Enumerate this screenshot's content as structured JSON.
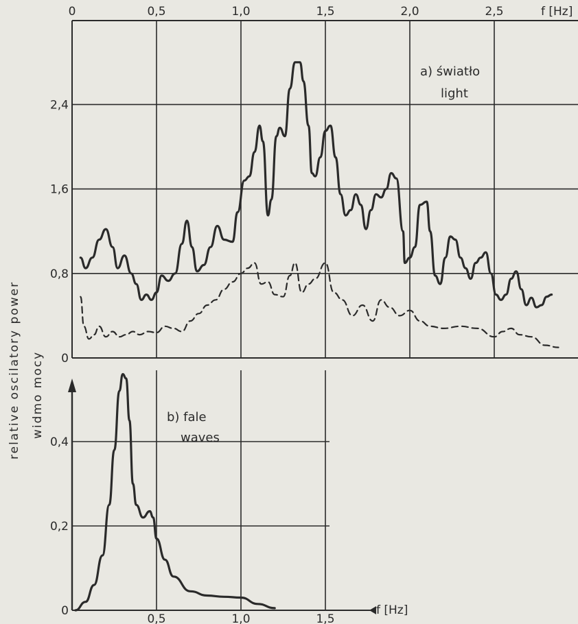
{
  "colors": {
    "paper": "#e9e8e2",
    "ink": "#2a2a2a"
  },
  "y_axis_label_en": "relative oscilatory power",
  "y_axis_label_pl": "widmo mocy",
  "chart_data": [
    {
      "type": "line",
      "panel": "a",
      "title": "a) światło",
      "subtitle": "light",
      "xlabel": "f [Hz]",
      "xlim": [
        0,
        3.0
      ],
      "ylim": [
        0,
        3.0
      ],
      "x_ticks": [
        {
          "value": 0,
          "label": "0"
        },
        {
          "value": 0.5,
          "label": "0,5"
        },
        {
          "value": 1.0,
          "label": "1,0"
        },
        {
          "value": 1.5,
          "label": "1,5"
        },
        {
          "value": 2.0,
          "label": "2,0"
        },
        {
          "value": 2.5,
          "label": "2,5"
        }
      ],
      "y_ticks": [
        {
          "value": 0,
          "label": "0"
        },
        {
          "value": 0.8,
          "label": "0,8"
        },
        {
          "value": 1.6,
          "label": "1,6"
        },
        {
          "value": 2.4,
          "label": "2,4"
        }
      ],
      "grid": true,
      "series": [
        {
          "style": "solid",
          "points": [
            [
              0.05,
              0.95
            ],
            [
              0.08,
              0.85
            ],
            [
              0.12,
              0.95
            ],
            [
              0.16,
              1.12
            ],
            [
              0.2,
              1.22
            ],
            [
              0.24,
              1.05
            ],
            [
              0.27,
              0.85
            ],
            [
              0.31,
              0.97
            ],
            [
              0.35,
              0.8
            ],
            [
              0.38,
              0.7
            ],
            [
              0.41,
              0.55
            ],
            [
              0.44,
              0.6
            ],
            [
              0.47,
              0.55
            ],
            [
              0.5,
              0.62
            ],
            [
              0.53,
              0.78
            ],
            [
              0.57,
              0.73
            ],
            [
              0.61,
              0.8
            ],
            [
              0.65,
              1.08
            ],
            [
              0.68,
              1.3
            ],
            [
              0.71,
              1.05
            ],
            [
              0.74,
              0.82
            ],
            [
              0.78,
              0.88
            ],
            [
              0.82,
              1.05
            ],
            [
              0.86,
              1.25
            ],
            [
              0.9,
              1.12
            ],
            [
              0.95,
              1.1
            ],
            [
              0.98,
              1.38
            ],
            [
              1.02,
              1.68
            ],
            [
              1.05,
              1.72
            ],
            [
              1.08,
              1.95
            ],
            [
              1.11,
              2.2
            ],
            [
              1.13,
              2.05
            ],
            [
              1.16,
              1.35
            ],
            [
              1.18,
              1.5
            ],
            [
              1.21,
              2.1
            ],
            [
              1.23,
              2.18
            ],
            [
              1.26,
              2.1
            ],
            [
              1.29,
              2.55
            ],
            [
              1.32,
              2.8
            ],
            [
              1.35,
              2.8
            ],
            [
              1.37,
              2.62
            ],
            [
              1.4,
              2.2
            ],
            [
              1.42,
              1.75
            ],
            [
              1.44,
              1.72
            ],
            [
              1.47,
              1.9
            ],
            [
              1.5,
              2.15
            ],
            [
              1.53,
              2.2
            ],
            [
              1.56,
              1.9
            ],
            [
              1.59,
              1.55
            ],
            [
              1.62,
              1.35
            ],
            [
              1.65,
              1.4
            ],
            [
              1.68,
              1.55
            ],
            [
              1.71,
              1.45
            ],
            [
              1.74,
              1.22
            ],
            [
              1.77,
              1.4
            ],
            [
              1.8,
              1.55
            ],
            [
              1.83,
              1.52
            ],
            [
              1.86,
              1.6
            ],
            [
              1.89,
              1.75
            ],
            [
              1.92,
              1.7
            ],
            [
              1.96,
              1.2
            ],
            [
              1.97,
              0.9
            ],
            [
              2.0,
              0.95
            ],
            [
              2.03,
              1.05
            ],
            [
              2.06,
              1.45
            ],
            [
              2.1,
              1.48
            ],
            [
              2.12,
              1.2
            ],
            [
              2.15,
              0.78
            ],
            [
              2.18,
              0.7
            ],
            [
              2.21,
              0.95
            ],
            [
              2.24,
              1.15
            ],
            [
              2.27,
              1.12
            ],
            [
              2.3,
              0.95
            ],
            [
              2.33,
              0.85
            ],
            [
              2.36,
              0.75
            ],
            [
              2.39,
              0.9
            ],
            [
              2.42,
              0.95
            ],
            [
              2.45,
              1.0
            ],
            [
              2.48,
              0.8
            ],
            [
              2.51,
              0.6
            ],
            [
              2.54,
              0.55
            ],
            [
              2.57,
              0.6
            ],
            [
              2.6,
              0.75
            ],
            [
              2.63,
              0.82
            ],
            [
              2.66,
              0.65
            ],
            [
              2.69,
              0.5
            ],
            [
              2.72,
              0.57
            ],
            [
              2.75,
              0.48
            ],
            [
              2.78,
              0.5
            ],
            [
              2.81,
              0.58
            ],
            [
              2.84,
              0.6
            ]
          ]
        },
        {
          "style": "dashed",
          "points": [
            [
              0.05,
              0.58
            ],
            [
              0.07,
              0.3
            ],
            [
              0.1,
              0.18
            ],
            [
              0.13,
              0.22
            ],
            [
              0.16,
              0.3
            ],
            [
              0.2,
              0.2
            ],
            [
              0.24,
              0.25
            ],
            [
              0.28,
              0.2
            ],
            [
              0.32,
              0.22
            ],
            [
              0.36,
              0.25
            ],
            [
              0.4,
              0.22
            ],
            [
              0.45,
              0.25
            ],
            [
              0.5,
              0.24
            ],
            [
              0.55,
              0.3
            ],
            [
              0.6,
              0.28
            ],
            [
              0.65,
              0.25
            ],
            [
              0.7,
              0.35
            ],
            [
              0.75,
              0.42
            ],
            [
              0.8,
              0.5
            ],
            [
              0.85,
              0.55
            ],
            [
              0.9,
              0.65
            ],
            [
              0.95,
              0.72
            ],
            [
              1.0,
              0.8
            ],
            [
              1.04,
              0.85
            ],
            [
              1.08,
              0.9
            ],
            [
              1.12,
              0.7
            ],
            [
              1.16,
              0.72
            ],
            [
              1.2,
              0.6
            ],
            [
              1.25,
              0.58
            ],
            [
              1.29,
              0.78
            ],
            [
              1.32,
              0.9
            ],
            [
              1.36,
              0.62
            ],
            [
              1.4,
              0.7
            ],
            [
              1.44,
              0.75
            ],
            [
              1.5,
              0.9
            ],
            [
              1.55,
              0.62
            ],
            [
              1.6,
              0.55
            ],
            [
              1.66,
              0.4
            ],
            [
              1.72,
              0.5
            ],
            [
              1.78,
              0.35
            ],
            [
              1.83,
              0.55
            ],
            [
              1.88,
              0.48
            ],
            [
              1.94,
              0.4
            ],
            [
              2.0,
              0.45
            ],
            [
              2.06,
              0.35
            ],
            [
              2.12,
              0.3
            ],
            [
              2.2,
              0.28
            ],
            [
              2.3,
              0.3
            ],
            [
              2.4,
              0.28
            ],
            [
              2.5,
              0.2
            ],
            [
              2.55,
              0.25
            ],
            [
              2.6,
              0.28
            ],
            [
              2.65,
              0.22
            ],
            [
              2.72,
              0.2
            ],
            [
              2.8,
              0.12
            ],
            [
              2.88,
              0.1
            ]
          ]
        }
      ]
    },
    {
      "type": "line",
      "panel": "b",
      "title": "b) fale",
      "subtitle": "waves",
      "xlabel": "f [Hz]",
      "xlim": [
        0,
        1.5
      ],
      "ylim": [
        0,
        0.6
      ],
      "x_ticks": [
        {
          "value": 0.5,
          "label": "0,5"
        },
        {
          "value": 1.0,
          "label": "1,0"
        },
        {
          "value": 1.5,
          "label": "1,5"
        }
      ],
      "y_ticks": [
        {
          "value": 0,
          "label": "0"
        },
        {
          "value": 0.2,
          "label": "0,2"
        },
        {
          "value": 0.4,
          "label": "0,4"
        }
      ],
      "grid": true,
      "series": [
        {
          "style": "solid",
          "points": [
            [
              0.02,
              0.0
            ],
            [
              0.08,
              0.02
            ],
            [
              0.13,
              0.06
            ],
            [
              0.18,
              0.13
            ],
            [
              0.22,
              0.25
            ],
            [
              0.25,
              0.38
            ],
            [
              0.28,
              0.52
            ],
            [
              0.3,
              0.56
            ],
            [
              0.32,
              0.55
            ],
            [
              0.34,
              0.45
            ],
            [
              0.36,
              0.3
            ],
            [
              0.38,
              0.25
            ],
            [
              0.42,
              0.22
            ],
            [
              0.46,
              0.235
            ],
            [
              0.48,
              0.22
            ],
            [
              0.5,
              0.17
            ],
            [
              0.55,
              0.12
            ],
            [
              0.6,
              0.08
            ],
            [
              0.7,
              0.045
            ],
            [
              0.8,
              0.035
            ],
            [
              0.9,
              0.032
            ],
            [
              1.0,
              0.03
            ],
            [
              1.1,
              0.015
            ],
            [
              1.2,
              0.005
            ]
          ]
        }
      ]
    }
  ]
}
